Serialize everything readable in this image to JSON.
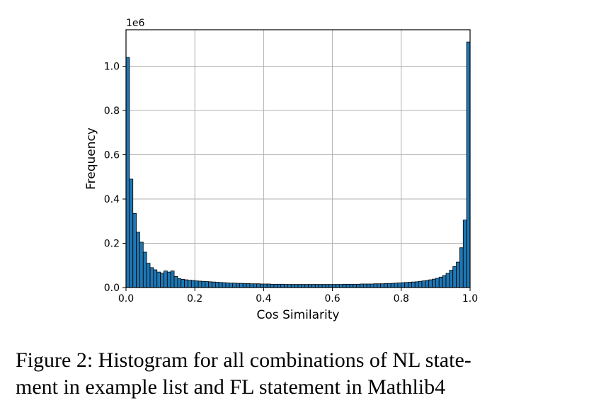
{
  "chart_data": {
    "type": "bar",
    "title": "",
    "xlabel": "Cos Similarity",
    "ylabel": "Frequency",
    "y_scale_label": "1e6",
    "xlim": [
      0.0,
      1.0
    ],
    "ylim": [
      0.0,
      1.165
    ],
    "grid": true,
    "bin_width": 0.01,
    "bar_color": "#1f77b4",
    "edge_color": "#000000",
    "x_ticks": [
      0.0,
      0.2,
      0.4,
      0.6,
      0.8,
      1.0
    ],
    "x_tick_labels": [
      "0.0",
      "0.2",
      "0.4",
      "0.6",
      "0.8",
      "1.0"
    ],
    "y_ticks": [
      0.0,
      0.2,
      0.4,
      0.6,
      0.8,
      1.0
    ],
    "y_tick_labels": [
      "0.0",
      "0.2",
      "0.4",
      "0.6",
      "0.8",
      "1.0"
    ],
    "values": [
      1.04,
      0.49,
      0.335,
      0.25,
      0.205,
      0.16,
      0.11,
      0.09,
      0.08,
      0.07,
      0.065,
      0.075,
      0.07,
      0.075,
      0.05,
      0.04,
      0.037,
      0.035,
      0.033,
      0.032,
      0.03,
      0.029,
      0.028,
      0.027,
      0.026,
      0.025,
      0.024,
      0.023,
      0.022,
      0.021,
      0.02,
      0.02,
      0.019,
      0.019,
      0.018,
      0.018,
      0.017,
      0.017,
      0.017,
      0.016,
      0.016,
      0.016,
      0.015,
      0.015,
      0.015,
      0.015,
      0.014,
      0.014,
      0.014,
      0.014,
      0.014,
      0.014,
      0.014,
      0.014,
      0.014,
      0.014,
      0.014,
      0.014,
      0.014,
      0.014,
      0.014,
      0.014,
      0.014,
      0.015,
      0.015,
      0.015,
      0.015,
      0.015,
      0.016,
      0.016,
      0.016,
      0.016,
      0.017,
      0.017,
      0.017,
      0.018,
      0.018,
      0.019,
      0.02,
      0.021,
      0.022,
      0.023,
      0.024,
      0.025,
      0.026,
      0.028,
      0.03,
      0.032,
      0.035,
      0.038,
      0.042,
      0.047,
      0.054,
      0.064,
      0.078,
      0.095,
      0.115,
      0.18,
      0.305,
      1.11
    ]
  },
  "caption": {
    "line1": "Figure 2: Histogram for all combinations of NL state-",
    "line2": "ment in example list and FL statement in Mathlib4"
  }
}
